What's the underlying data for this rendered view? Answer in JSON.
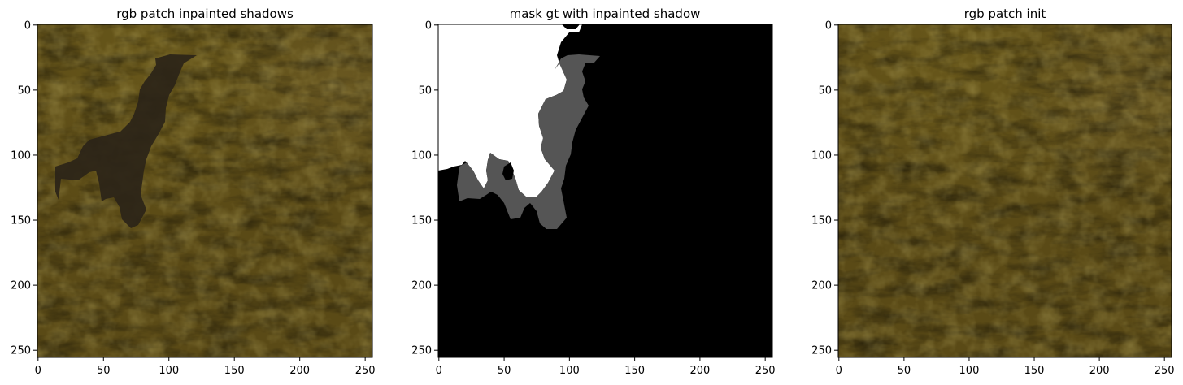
{
  "figure": {
    "panels": [
      {
        "title": "rgb patch inpainted shadows",
        "kind": "rgb-with-inpainted-shadow",
        "x_ticks": [
          "0",
          "50",
          "100",
          "150",
          "200",
          "250"
        ],
        "y_ticks": [
          "0",
          "50",
          "100",
          "150",
          "200",
          "250"
        ]
      },
      {
        "title": "mask gt with inpainted shadow",
        "kind": "mask",
        "x_ticks": [
          "0",
          "50",
          "100",
          "150",
          "200",
          "250"
        ],
        "y_ticks": [
          "0",
          "50",
          "100",
          "150",
          "200",
          "250"
        ]
      },
      {
        "title": "rgb patch init",
        "kind": "rgb",
        "x_ticks": [
          "0",
          "50",
          "100",
          "150",
          "200",
          "250"
        ],
        "y_ticks": [
          "0",
          "50",
          "100",
          "150",
          "200",
          "250"
        ]
      }
    ],
    "image_size": 256,
    "colors": {
      "terrain_base": "#5a4a16",
      "terrain_light": "#6e5b1e",
      "terrain_dark": "#3e3210",
      "shadow": "#2b2418",
      "mask_white": "#ffffff",
      "mask_gray": "#555555",
      "mask_black": "#000000"
    }
  }
}
